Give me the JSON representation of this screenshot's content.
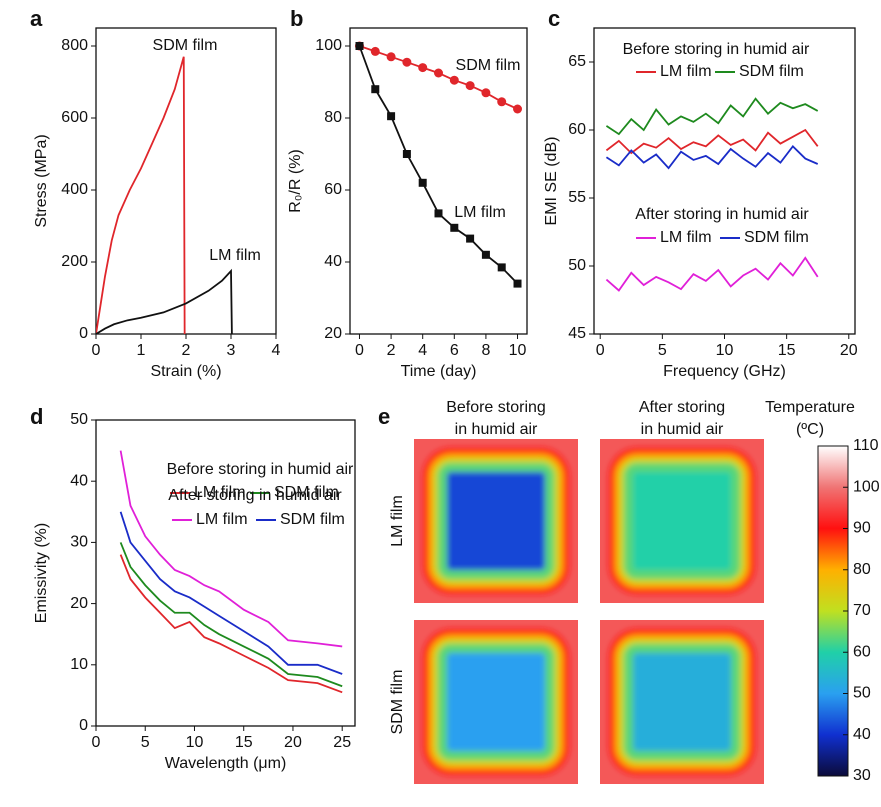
{
  "chart_data": [
    {
      "type": "line",
      "panel": "a",
      "xlabel": "Strain (%)",
      "ylabel": "Stress (MPa)",
      "xlim": [
        0,
        4
      ],
      "xticks": [
        0,
        1,
        2,
        3,
        4
      ],
      "ylim": [
        0,
        850
      ],
      "yticks": [
        0,
        200,
        400,
        600,
        800
      ],
      "series": [
        {
          "name": "SDM film",
          "color": "#e0262b",
          "x": [
            0,
            0.1,
            0.2,
            0.35,
            0.5,
            0.75,
            1,
            1.25,
            1.5,
            1.75,
            1.95,
            1.97
          ],
          "values": [
            0,
            80,
            160,
            260,
            330,
            400,
            460,
            530,
            600,
            680,
            770,
            0
          ]
        },
        {
          "name": "LM film",
          "color": "#111111",
          "x": [
            0,
            0.2,
            0.4,
            0.7,
            1,
            1.5,
            2,
            2.5,
            2.8,
            3,
            3.02
          ],
          "values": [
            0,
            15,
            27,
            38,
            45,
            60,
            85,
            120,
            148,
            175,
            0
          ]
        }
      ]
    },
    {
      "type": "line",
      "panel": "b",
      "xlabel": "Time (day)",
      "ylabel": "R₀/R (%)",
      "xlim": [
        -0.6,
        10.6
      ],
      "xticks": [
        0,
        2,
        4,
        6,
        8,
        10
      ],
      "ylim": [
        20,
        105
      ],
      "yticks": [
        20,
        40,
        60,
        80,
        100
      ],
      "x": [
        0,
        1,
        2,
        3,
        4,
        5,
        6,
        7,
        8,
        9,
        10
      ],
      "series": [
        {
          "name": "SDM film",
          "color": "#e0262b",
          "marker": "circle",
          "values": [
            100,
            98.5,
            97,
            95.5,
            94,
            92.5,
            90.5,
            89,
            87,
            84.5,
            82.5
          ]
        },
        {
          "name": "LM film",
          "color": "#111111",
          "marker": "square",
          "values": [
            100,
            88,
            80.5,
            70,
            62,
            53.5,
            49.5,
            46.5,
            42,
            38.5,
            34
          ]
        }
      ]
    },
    {
      "type": "line",
      "panel": "c",
      "xlabel": "Frequency (GHz)",
      "ylabel": "EMI SE (dB)",
      "xlim": [
        -0.5,
        20.5
      ],
      "xticks": [
        0,
        5,
        10,
        15,
        20
      ],
      "ylim": [
        45,
        67.5
      ],
      "yticks": [
        45,
        50,
        55,
        60,
        65
      ],
      "annotations": [
        "Before storing in humid air",
        "After storing in humid air"
      ],
      "x": [
        0.5,
        1.5,
        2.5,
        3.5,
        4.5,
        5.5,
        6.5,
        7.5,
        8.5,
        9.5,
        10.5,
        11.5,
        12.5,
        13.5,
        14.5,
        15.5,
        16.5,
        17.5
      ],
      "series": [
        {
          "name": "LM film",
          "color": "#e0262b",
          "values": [
            58.5,
            59.2,
            58.3,
            59,
            58.7,
            59.4,
            58.6,
            59.1,
            58.8,
            59.6,
            58.9,
            59.3,
            58.5,
            59.8,
            59,
            59.5,
            60,
            58.8
          ]
        },
        {
          "name": "SDM film",
          "color": "#1e8a1e",
          "values": [
            60.3,
            59.7,
            60.8,
            60,
            61.5,
            60.4,
            61,
            60.6,
            61.2,
            60.5,
            61.8,
            61,
            62.3,
            61.2,
            62,
            61.6,
            61.9,
            61.4
          ]
        },
        {
          "name": "LM film",
          "color": "#e020d8",
          "values": [
            49,
            48.2,
            49.5,
            48.6,
            49.2,
            48.8,
            48.3,
            49.4,
            48.9,
            49.7,
            48.5,
            49.3,
            49.8,
            49,
            50.2,
            49.3,
            50.6,
            49.2
          ]
        },
        {
          "name": "SDM film",
          "color": "#1a2cc8",
          "values": [
            58,
            57.4,
            58.5,
            57.6,
            58.2,
            57.2,
            58.4,
            57.8,
            58.1,
            57.5,
            58.6,
            57.9,
            57.3,
            58.3,
            57.6,
            58.8,
            57.9,
            57.5
          ]
        }
      ]
    },
    {
      "type": "line",
      "panel": "d",
      "xlabel": "Wavelength (μm)",
      "ylabel": "Emissivity (%)",
      "xlim": [
        0,
        26.3
      ],
      "xticks": [
        0,
        5,
        10,
        15,
        20,
        25
      ],
      "ylim": [
        0,
        50
      ],
      "yticks": [
        0,
        10,
        20,
        30,
        40,
        50
      ],
      "annotations": [
        "Before storing in humid air",
        "After storing in humid air"
      ],
      "x": [
        2.5,
        3.5,
        5,
        6.5,
        8,
        9.5,
        11,
        12.5,
        15,
        17.5,
        19.5,
        22.5,
        25
      ],
      "series": [
        {
          "name": "LM film",
          "color": "#e0262b",
          "values": [
            28,
            24,
            21,
            18.5,
            16,
            17,
            14.5,
            13.5,
            11.5,
            9.5,
            7.5,
            7,
            5.5
          ]
        },
        {
          "name": "SDM film",
          "color": "#1e8a1e",
          "values": [
            30,
            26,
            23,
            20.5,
            18.5,
            18.5,
            16.5,
            15,
            13,
            11,
            8.5,
            8,
            6.5
          ]
        },
        {
          "name": "LM film",
          "color": "#e020d8",
          "values": [
            45,
            36,
            31,
            28,
            25.5,
            24.5,
            23,
            22,
            19,
            17,
            14,
            13.5,
            13
          ]
        },
        {
          "name": "SDM film",
          "color": "#1a2cc8",
          "values": [
            35,
            30,
            27,
            24,
            22,
            21,
            19.5,
            18,
            15.5,
            13,
            10,
            10,
            8.5
          ]
        }
      ]
    },
    {
      "type": "heatmap",
      "panel": "e",
      "columns": [
        "Before storing in humid air",
        "After storing in humid air"
      ],
      "rows": [
        "LM film",
        "SDM film"
      ],
      "values": [
        [
          42,
          60
        ],
        [
          50,
          53
        ]
      ],
      "colormap": "jet-white",
      "colorbar_title": "Temperature (ºC)",
      "zlim": [
        30,
        110
      ],
      "zticks": [
        30,
        40,
        50,
        60,
        70,
        80,
        90,
        100,
        110
      ]
    }
  ]
}
